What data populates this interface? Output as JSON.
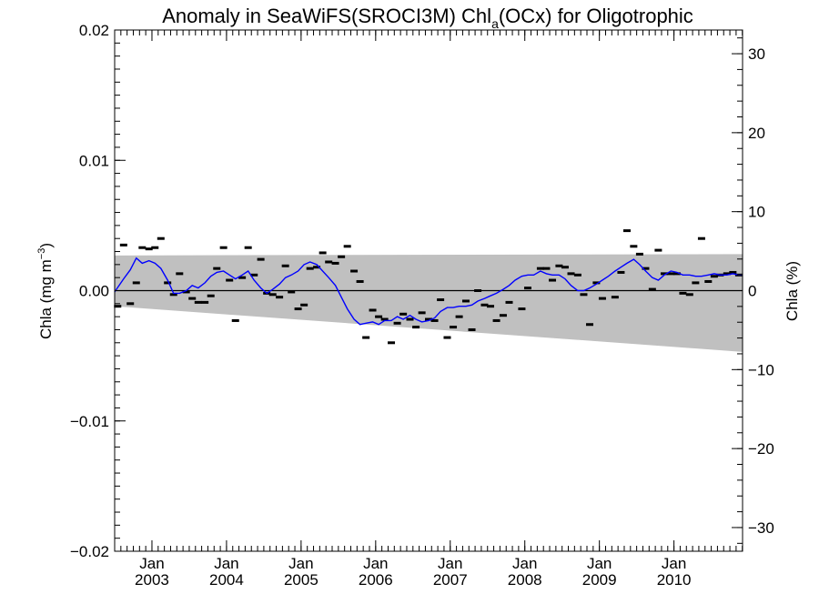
{
  "chart_data": {
    "type": "line",
    "title": {
      "prefix": "Anomaly in SeaWiFS(SROCI3M) Chl",
      "subscript": "a",
      "suffix": "(OCx) for Oligotrophic"
    },
    "ylabel_left": {
      "base": "Chla (mg m",
      "sup": "−3",
      "close": ")"
    },
    "ylabel_right": "Chla (%)",
    "x_range": [
      2002.5,
      2010.92
    ],
    "ylim_left": [
      -0.02,
      0.02
    ],
    "ylim_right": [
      -33,
      33
    ],
    "left_ticks": [
      {
        "value": 0.02,
        "label": "0.02"
      },
      {
        "value": 0.01,
        "label": "0.01"
      },
      {
        "value": 0.0,
        "label": "0.00"
      },
      {
        "value": -0.01,
        "label": "−0.01"
      },
      {
        "value": -0.02,
        "label": "−0.02"
      }
    ],
    "right_ticks": [
      {
        "value": 30,
        "label": "30"
      },
      {
        "value": 20,
        "label": "20"
      },
      {
        "value": 10,
        "label": "10"
      },
      {
        "value": 0,
        "label": "0"
      },
      {
        "value": -10,
        "label": "−10"
      },
      {
        "value": -20,
        "label": "−20"
      },
      {
        "value": -30,
        "label": "−30"
      }
    ],
    "x_ticks": [
      {
        "value": 2003.0,
        "month": "Jan",
        "year": "2003"
      },
      {
        "value": 2004.0,
        "month": "Jan",
        "year": "2004"
      },
      {
        "value": 2005.0,
        "month": "Jan",
        "year": "2005"
      },
      {
        "value": 2006.0,
        "month": "Jan",
        "year": "2006"
      },
      {
        "value": 2007.0,
        "month": "Jan",
        "year": "2007"
      },
      {
        "value": 2008.0,
        "month": "Jan",
        "year": "2008"
      },
      {
        "value": 2009.0,
        "month": "Jan",
        "year": "2009"
      },
      {
        "value": 2010.0,
        "month": "Jan",
        "year": "2010"
      }
    ],
    "uncertainty_band": {
      "color": "#c0c0c0",
      "upper": [
        [
          2002.5,
          0.0027
        ],
        [
          2010.92,
          0.0028
        ]
      ],
      "lower": [
        [
          2002.5,
          -0.0012
        ],
        [
          2010.92,
          -0.0047
        ]
      ]
    },
    "zero_line": 0.0,
    "monthly_anomalies": [
      [
        2002.54,
        -0.0012
      ],
      [
        2002.62,
        0.0035
      ],
      [
        2002.71,
        -0.001
      ],
      [
        2002.79,
        0.0006
      ],
      [
        2002.87,
        0.0033
      ],
      [
        2002.96,
        0.0032
      ],
      [
        2003.04,
        0.0033
      ],
      [
        2003.12,
        0.004
      ],
      [
        2003.21,
        0.0006
      ],
      [
        2003.29,
        -0.0003
      ],
      [
        2003.37,
        0.0013
      ],
      [
        2003.46,
        -0.0001
      ],
      [
        2003.54,
        -0.0006
      ],
      [
        2003.62,
        -0.0009
      ],
      [
        2003.71,
        -0.0009
      ],
      [
        2003.79,
        -0.0004
      ],
      [
        2003.87,
        0.0017
      ],
      [
        2003.96,
        0.0033
      ],
      [
        2004.04,
        0.0008
      ],
      [
        2004.12,
        -0.0023
      ],
      [
        2004.21,
        0.001
      ],
      [
        2004.29,
        0.0033
      ],
      [
        2004.37,
        0.0012
      ],
      [
        2004.46,
        0.0024
      ],
      [
        2004.54,
        -0.0002
      ],
      [
        2004.62,
        -0.0003
      ],
      [
        2004.71,
        -0.0005
      ],
      [
        2004.79,
        0.0019
      ],
      [
        2004.87,
        -0.0001
      ],
      [
        2004.96,
        -0.0014
      ],
      [
        2005.04,
        -0.0011
      ],
      [
        2005.12,
        0.0017
      ],
      [
        2005.21,
        0.0018
      ],
      [
        2005.29,
        0.0029
      ],
      [
        2005.37,
        0.0022
      ],
      [
        2005.46,
        0.0021
      ],
      [
        2005.54,
        0.0026
      ],
      [
        2005.62,
        0.0034
      ],
      [
        2005.71,
        0.0015
      ],
      [
        2005.79,
        0.0007
      ],
      [
        2005.87,
        -0.0036
      ],
      [
        2005.96,
        -0.0015
      ],
      [
        2006.04,
        -0.002
      ],
      [
        2006.12,
        -0.0022
      ],
      [
        2006.21,
        -0.004
      ],
      [
        2006.29,
        -0.0025
      ],
      [
        2006.37,
        -0.0018
      ],
      [
        2006.46,
        -0.0022
      ],
      [
        2006.54,
        -0.0028
      ],
      [
        2006.62,
        -0.0017
      ],
      [
        2006.71,
        -0.0022
      ],
      [
        2006.79,
        -0.0023
      ],
      [
        2006.87,
        -0.0007
      ],
      [
        2006.96,
        -0.0036
      ],
      [
        2007.04,
        -0.0028
      ],
      [
        2007.12,
        -0.002
      ],
      [
        2007.21,
        -0.0008
      ],
      [
        2007.29,
        -0.003
      ],
      [
        2007.37,
        0.0
      ],
      [
        2007.46,
        -0.0011
      ],
      [
        2007.54,
        -0.0012
      ],
      [
        2007.62,
        -0.0023
      ],
      [
        2007.71,
        -0.0019
      ],
      [
        2007.79,
        -0.0009
      ],
      [
        2007.96,
        -0.0014
      ],
      [
        2008.04,
        0.0002
      ],
      [
        2008.21,
        0.0017
      ],
      [
        2008.29,
        0.0017
      ],
      [
        2008.37,
        0.0008
      ],
      [
        2008.46,
        0.0019
      ],
      [
        2008.54,
        0.0018
      ],
      [
        2008.62,
        0.0013
      ],
      [
        2008.71,
        0.0012
      ],
      [
        2008.79,
        -0.0003
      ],
      [
        2008.87,
        -0.0026
      ],
      [
        2008.96,
        0.0006
      ],
      [
        2009.04,
        -0.0006
      ],
      [
        2009.21,
        -0.0005
      ],
      [
        2009.29,
        0.0014
      ],
      [
        2009.37,
        0.0046
      ],
      [
        2009.46,
        0.0034
      ],
      [
        2009.54,
        0.0028
      ],
      [
        2009.62,
        0.0017
      ],
      [
        2009.71,
        0.0001
      ],
      [
        2009.79,
        0.0031
      ],
      [
        2009.87,
        0.0013
      ],
      [
        2009.96,
        0.0013
      ],
      [
        2010.04,
        0.0013
      ],
      [
        2010.12,
        -0.0002
      ],
      [
        2010.21,
        -0.0003
      ],
      [
        2010.29,
        0.0006
      ],
      [
        2010.37,
        0.004
      ],
      [
        2010.46,
        0.0007
      ],
      [
        2010.54,
        0.0011
      ],
      [
        2010.62,
        0.0012
      ],
      [
        2010.71,
        0.0013
      ],
      [
        2010.79,
        0.0014
      ],
      [
        2010.87,
        0.0012
      ]
    ],
    "smoothed_series": {
      "color": "#0000ff",
      "points": [
        [
          2002.5,
          -0.0001
        ],
        [
          2002.62,
          0.0009
        ],
        [
          2002.71,
          0.0016
        ],
        [
          2002.79,
          0.0025
        ],
        [
          2002.87,
          0.0021
        ],
        [
          2002.96,
          0.0023
        ],
        [
          2003.04,
          0.0021
        ],
        [
          2003.12,
          0.0017
        ],
        [
          2003.21,
          0.0008
        ],
        [
          2003.29,
          -0.0002
        ],
        [
          2003.37,
          -0.0002
        ],
        [
          2003.46,
          0.0
        ],
        [
          2003.54,
          0.0004
        ],
        [
          2003.62,
          0.0002
        ],
        [
          2003.71,
          0.0006
        ],
        [
          2003.79,
          0.0011
        ],
        [
          2003.87,
          0.0014
        ],
        [
          2003.96,
          0.0015
        ],
        [
          2004.04,
          0.0012
        ],
        [
          2004.12,
          0.0009
        ],
        [
          2004.21,
          0.0012
        ],
        [
          2004.29,
          0.0015
        ],
        [
          2004.37,
          0.0008
        ],
        [
          2004.46,
          0.0002
        ],
        [
          2004.54,
          -0.0002
        ],
        [
          2004.62,
          0.0001
        ],
        [
          2004.71,
          0.0005
        ],
        [
          2004.79,
          0.001
        ],
        [
          2004.87,
          0.0012
        ],
        [
          2004.96,
          0.0015
        ],
        [
          2005.04,
          0.002
        ],
        [
          2005.12,
          0.0022
        ],
        [
          2005.21,
          0.002
        ],
        [
          2005.29,
          0.0015
        ],
        [
          2005.37,
          0.001
        ],
        [
          2005.46,
          0.0004
        ],
        [
          2005.54,
          -0.0005
        ],
        [
          2005.62,
          -0.0014
        ],
        [
          2005.71,
          -0.0022
        ],
        [
          2005.79,
          -0.0026
        ],
        [
          2005.87,
          -0.0025
        ],
        [
          2005.96,
          -0.0024
        ],
        [
          2006.04,
          -0.0026
        ],
        [
          2006.12,
          -0.0023
        ],
        [
          2006.21,
          -0.0023
        ],
        [
          2006.29,
          -0.002
        ],
        [
          2006.37,
          -0.0022
        ],
        [
          2006.46,
          -0.0019
        ],
        [
          2006.54,
          -0.0022
        ],
        [
          2006.62,
          -0.0024
        ],
        [
          2006.71,
          -0.0023
        ],
        [
          2006.79,
          -0.0021
        ],
        [
          2006.87,
          -0.0016
        ],
        [
          2006.96,
          -0.0013
        ],
        [
          2007.04,
          -0.0013
        ],
        [
          2007.12,
          -0.0012
        ],
        [
          2007.21,
          -0.0012
        ],
        [
          2007.29,
          -0.0011
        ],
        [
          2007.37,
          -0.0008
        ],
        [
          2007.46,
          -0.0006
        ],
        [
          2007.54,
          -0.0004
        ],
        [
          2007.62,
          -0.0002
        ],
        [
          2007.71,
          0.0001
        ],
        [
          2007.79,
          0.0004
        ],
        [
          2007.87,
          0.0008
        ],
        [
          2007.96,
          0.0011
        ],
        [
          2008.04,
          0.0012
        ],
        [
          2008.12,
          0.0012
        ],
        [
          2008.21,
          0.0015
        ],
        [
          2008.29,
          0.0013
        ],
        [
          2008.37,
          0.0012
        ],
        [
          2008.46,
          0.0012
        ],
        [
          2008.54,
          0.0009
        ],
        [
          2008.62,
          0.0004
        ],
        [
          2008.71,
          0.0
        ],
        [
          2008.79,
          0.0
        ],
        [
          2008.87,
          0.0002
        ],
        [
          2008.96,
          0.0005
        ],
        [
          2009.04,
          0.0008
        ],
        [
          2009.12,
          0.0011
        ],
        [
          2009.21,
          0.0015
        ],
        [
          2009.29,
          0.0018
        ],
        [
          2009.37,
          0.0021
        ],
        [
          2009.46,
          0.0024
        ],
        [
          2009.54,
          0.002
        ],
        [
          2009.62,
          0.0015
        ],
        [
          2009.71,
          0.001
        ],
        [
          2009.79,
          0.0008
        ],
        [
          2009.87,
          0.0012
        ],
        [
          2009.96,
          0.0015
        ],
        [
          2010.04,
          0.0014
        ],
        [
          2010.12,
          0.0012
        ],
        [
          2010.21,
          0.0012
        ],
        [
          2010.29,
          0.0011
        ],
        [
          2010.37,
          0.0011
        ],
        [
          2010.46,
          0.0012
        ],
        [
          2010.54,
          0.0013
        ],
        [
          2010.62,
          0.0012
        ],
        [
          2010.71,
          0.0012
        ],
        [
          2010.79,
          0.0013
        ],
        [
          2010.87,
          0.0012
        ],
        [
          2010.92,
          0.0012
        ]
      ]
    },
    "grid": false,
    "legend": "none"
  }
}
